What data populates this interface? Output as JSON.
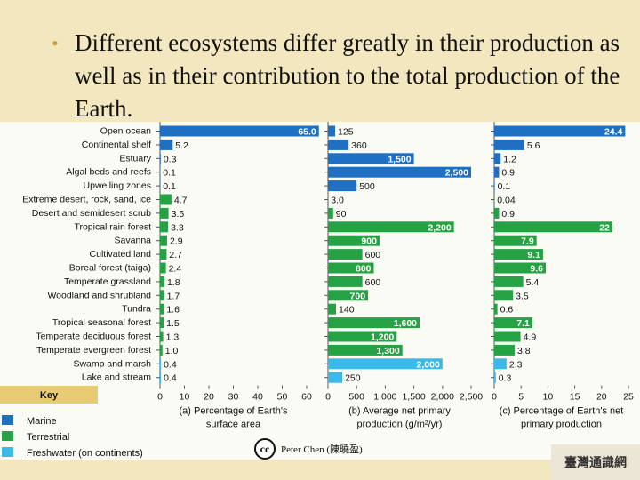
{
  "slide": {
    "bullet_symbol": "•",
    "bullet_text": "Different ecosystems differ greatly in their production as well as in their contribution to the total production of the Earth.",
    "credit": "Peter Chen (陳曉盈)",
    "logo_text": "臺灣通識網"
  },
  "colors": {
    "marine": "#1f6fc2",
    "terrestrial": "#25a244",
    "freshwater": "#3cb9e8"
  },
  "legend": {
    "title": "Key",
    "items": [
      {
        "label": "Marine",
        "type": "marine"
      },
      {
        "label": "Terrestrial",
        "type": "terrestrial"
      },
      {
        "label": "Freshwater (on continents)",
        "type": "freshwater"
      }
    ]
  },
  "chart_data": [
    {
      "panel": "a",
      "type": "bar",
      "orientation": "horizontal",
      "xlabel_lines": [
        "(a) Percentage of Earth's",
        "surface area"
      ],
      "xlim": [
        0,
        60
      ],
      "xticks": [
        0,
        10,
        20,
        30,
        40,
        50,
        60
      ],
      "categories": [
        "Open ocean",
        "Continental shelf",
        "Estuary",
        "Algal beds and reefs",
        "Upwelling zones",
        "Extreme desert, rock, sand, ice",
        "Desert and semidesert scrub",
        "Tropical rain forest",
        "Savanna",
        "Cultivated land",
        "Boreal forest (taiga)",
        "Temperate grassland",
        "Woodland and shrubland",
        "Tundra",
        "Tropical seasonal forest",
        "Temperate deciduous forest",
        "Temperate evergreen forest",
        "Swamp and marsh",
        "Lake and stream"
      ],
      "types": [
        "marine",
        "marine",
        "marine",
        "marine",
        "marine",
        "terrestrial",
        "terrestrial",
        "terrestrial",
        "terrestrial",
        "terrestrial",
        "terrestrial",
        "terrestrial",
        "terrestrial",
        "terrestrial",
        "terrestrial",
        "terrestrial",
        "terrestrial",
        "freshwater",
        "freshwater"
      ],
      "values": [
        65.0,
        5.2,
        0.3,
        0.1,
        0.1,
        4.7,
        3.5,
        3.3,
        2.9,
        2.7,
        2.4,
        1.8,
        1.7,
        1.6,
        1.5,
        1.3,
        1.0,
        0.4,
        0.4
      ],
      "labels": [
        "65.0",
        "5.2",
        "0.3",
        "0.1",
        "0.1",
        "4.7",
        "3.5",
        "3.3",
        "2.9",
        "2.7",
        "2.4",
        "1.8",
        "1.7",
        "1.6",
        "1.5",
        "1.3",
        "1.0",
        "0.4",
        "0.4"
      ]
    },
    {
      "panel": "b",
      "type": "bar",
      "orientation": "horizontal",
      "xlabel_lines": [
        "(b) Average net primary",
        "production (g/m²/yr)"
      ],
      "xlim": [
        0,
        2500
      ],
      "xticks": [
        0,
        500,
        1000,
        1500,
        2000,
        2500
      ],
      "xtick_labels": [
        "0",
        "500",
        "1,000",
        "1,500",
        "2,000",
        "2,500"
      ],
      "values": [
        125,
        360,
        1500,
        2500,
        500,
        3.0,
        90,
        2200,
        900,
        600,
        800,
        600,
        700,
        140,
        1600,
        1200,
        1300,
        2000,
        250
      ],
      "labels": [
        "125",
        "360",
        "1,500",
        "2,500",
        "500",
        "3.0",
        "90",
        "2,200",
        "900",
        "600",
        "800",
        "600",
        "700",
        "140",
        "1,600",
        "1,200",
        "1,300",
        "2,000",
        "250"
      ]
    },
    {
      "panel": "c",
      "type": "bar",
      "orientation": "horizontal",
      "xlabel_lines": [
        "(c) Percentage of Earth's net",
        "primary production"
      ],
      "xlim": [
        0,
        25
      ],
      "xticks": [
        0,
        5,
        10,
        15,
        20,
        25
      ],
      "values": [
        24.4,
        5.6,
        1.2,
        0.9,
        0.1,
        0.04,
        0.9,
        22,
        7.9,
        9.1,
        9.6,
        5.4,
        3.5,
        0.6,
        7.1,
        4.9,
        3.8,
        2.3,
        0.3
      ],
      "labels": [
        "24.4",
        "5.6",
        "1.2",
        "0.9",
        "0.1",
        "0.04",
        "0.9",
        "22",
        "7.9",
        "9.1",
        "9.6",
        "5.4",
        "3.5",
        "0.6",
        "7.1",
        "4.9",
        "3.8",
        "2.3",
        "0.3"
      ]
    }
  ]
}
